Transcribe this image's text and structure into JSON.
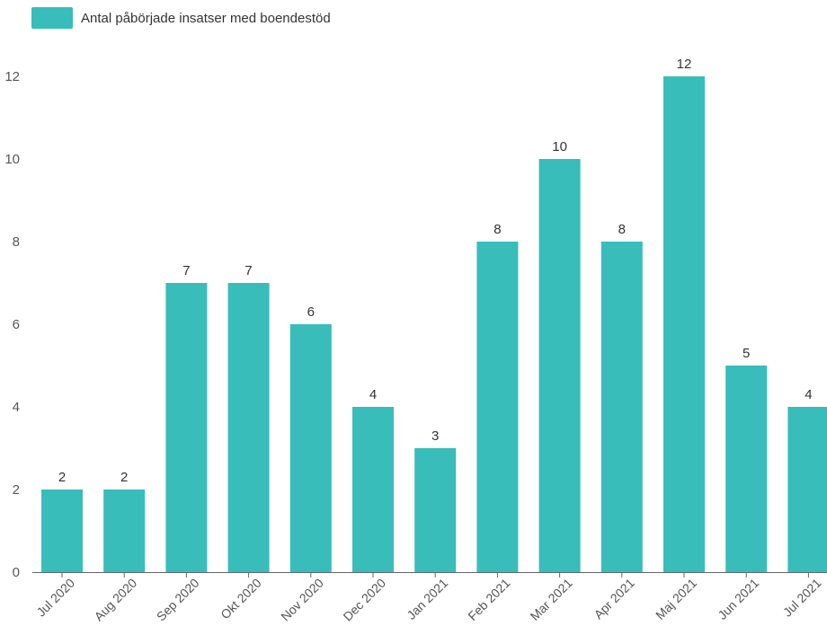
{
  "chart_data": {
    "type": "bar",
    "categories": [
      "Jul 2020",
      "Aug 2020",
      "Sep 2020",
      "Okt 2020",
      "Nov 2020",
      "Dec 2020",
      "Jan 2021",
      "Feb 2021",
      "Mar 2021",
      "Apr 2021",
      "Maj 2021",
      "Jun 2021",
      "Jul 2021"
    ],
    "series": [
      {
        "name": "Antal påbörjade insatser med boendestöd",
        "values": [
          2,
          2,
          7,
          7,
          6,
          4,
          3,
          8,
          10,
          8,
          12,
          5,
          4
        ]
      }
    ],
    "data_labels": [
      "2",
      "2",
      "7",
      "7",
      "6",
      "4",
      "3",
      "8",
      "10",
      "8",
      "12",
      "5",
      "4"
    ],
    "y_ticks": [
      0,
      2,
      4,
      6,
      8,
      10,
      12
    ],
    "ylim": [
      0,
      12
    ],
    "grid": false,
    "legend_position": "top-left",
    "colors": {
      "bar": "#38bdbb",
      "text": "#333333",
      "axis": "#666666",
      "tick_text": "#555555"
    }
  }
}
